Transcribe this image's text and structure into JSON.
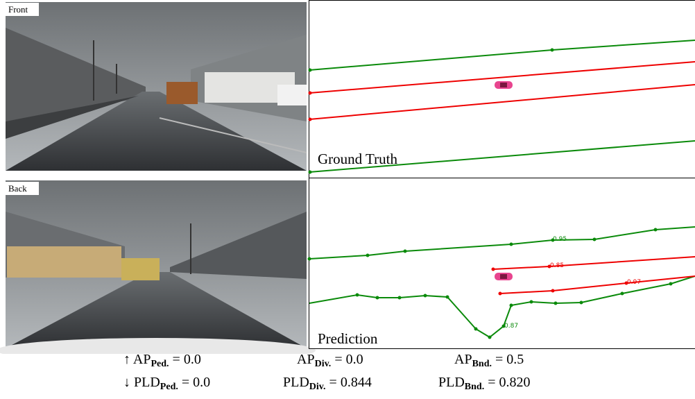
{
  "views": [
    {
      "label": "Front"
    },
    {
      "label": "Back"
    }
  ],
  "panels": [
    {
      "title": "Ground Truth"
    },
    {
      "title": "Prediction",
      "scores": [
        "0.95",
        "0.85",
        "0.97",
        "0.87"
      ]
    }
  ],
  "metrics": [
    {
      "arrow": "↑",
      "items": [
        {
          "name": "AP",
          "class": "Ped.",
          "op": "=",
          "value": "0.0"
        },
        {
          "name": "AP",
          "class": "Div.",
          "op": "=",
          "value": "0.0"
        },
        {
          "name": "AP",
          "class": "Bnd.",
          "op": "=",
          "value": "0.5"
        }
      ]
    },
    {
      "arrow": "↓",
      "items": [
        {
          "name": "PLD",
          "class": "Ped.",
          "op": "=",
          "value": "0.0"
        },
        {
          "name": "PLD",
          "class": "Div.",
          "op": "=",
          "value": "0.844"
        },
        {
          "name": "PLD",
          "class": "Bnd.",
          "op": "=",
          "value": "0.820"
        }
      ]
    }
  ]
}
